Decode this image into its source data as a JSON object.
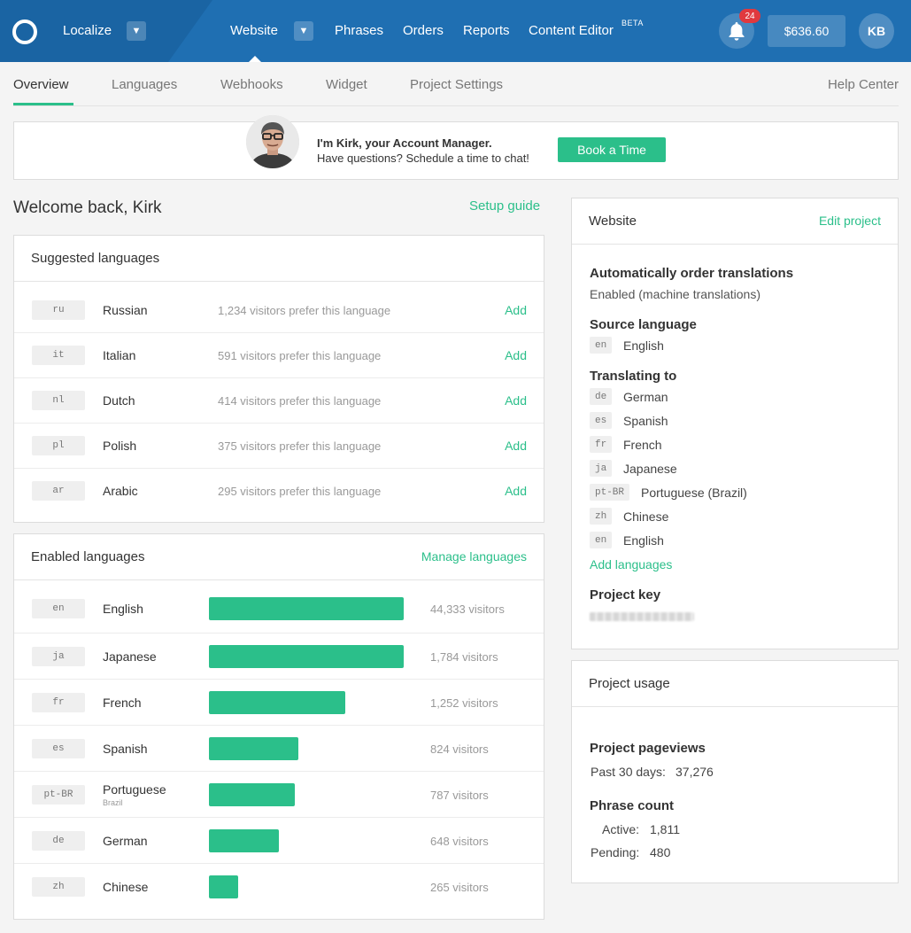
{
  "topbar": {
    "org_name": "Localize",
    "nav": [
      "Website",
      "Phrases",
      "Orders",
      "Reports",
      "Content Editor"
    ],
    "beta": "BETA",
    "notification_count": "24",
    "balance": "$636.60",
    "user_initials": "KB"
  },
  "subtabs": {
    "items": [
      "Overview",
      "Languages",
      "Webhooks",
      "Widget",
      "Project Settings"
    ],
    "help": "Help Center"
  },
  "banner": {
    "line1": "I'm Kirk, your Account Manager.",
    "line2": "Have questions? Schedule a time to chat!",
    "button": "Book a Time"
  },
  "welcome": "Welcome back, Kirk",
  "setup_guide": "Setup guide",
  "suggested": {
    "title": "Suggested languages",
    "add_label": "Add",
    "rows": [
      {
        "code": "ru",
        "name": "Russian",
        "pref": "1,234 visitors prefer this language"
      },
      {
        "code": "it",
        "name": "Italian",
        "pref": "591 visitors prefer this language"
      },
      {
        "code": "nl",
        "name": "Dutch",
        "pref": "414 visitors prefer this language"
      },
      {
        "code": "pl",
        "name": "Polish",
        "pref": "375 visitors prefer this language"
      },
      {
        "code": "ar",
        "name": "Arabic",
        "pref": "295 visitors prefer this language"
      }
    ]
  },
  "enabled": {
    "title": "Enabled languages",
    "manage": "Manage languages",
    "rows": [
      {
        "code": "en",
        "name": "English",
        "sub": "",
        "visitors": "44,333 visitors",
        "share": 1.0
      },
      {
        "code": "ja",
        "name": "Japanese",
        "sub": "",
        "visitors": "1,784 visitors",
        "share": 1.0
      },
      {
        "code": "fr",
        "name": "French",
        "sub": "",
        "visitors": "1,252 visitors",
        "share": 0.7
      },
      {
        "code": "es",
        "name": "Spanish",
        "sub": "",
        "visitors": "824 visitors",
        "share": 0.46
      },
      {
        "code": "pt-BR",
        "name": "Portuguese",
        "sub": "Brazil",
        "visitors": "787 visitors",
        "share": 0.44
      },
      {
        "code": "de",
        "name": "German",
        "sub": "",
        "visitors": "648 visitors",
        "share": 0.36
      },
      {
        "code": "zh",
        "name": "Chinese",
        "sub": "",
        "visitors": "265 visitors",
        "share": 0.15
      }
    ]
  },
  "website_card": {
    "title": "Website",
    "edit": "Edit project",
    "auto_order_label": "Automatically order translations",
    "auto_order_value": "Enabled (machine translations)",
    "source_label": "Source language",
    "source": {
      "code": "en",
      "name": "English"
    },
    "translating_label": "Translating to",
    "targets": [
      {
        "code": "de",
        "name": "German"
      },
      {
        "code": "es",
        "name": "Spanish"
      },
      {
        "code": "fr",
        "name": "French"
      },
      {
        "code": "ja",
        "name": "Japanese"
      },
      {
        "code": "pt-BR",
        "name": "Portuguese (Brazil)"
      },
      {
        "code": "zh",
        "name": "Chinese"
      },
      {
        "code": "en",
        "name": "English"
      }
    ],
    "add_languages": "Add languages",
    "project_key_label": "Project key"
  },
  "usage_card": {
    "title": "Project usage",
    "pageviews_label": "Project pageviews",
    "past30_label": "Past 30 days:",
    "past30_value": "37,276",
    "phrase_label": "Phrase count",
    "active_label": "Active:",
    "active_value": "1,811",
    "pending_label": "Pending:",
    "pending_value": "480"
  },
  "colors": {
    "topbar": "#1f6fb2",
    "accent": "#2bbf8a",
    "badge": "#e0393e"
  }
}
